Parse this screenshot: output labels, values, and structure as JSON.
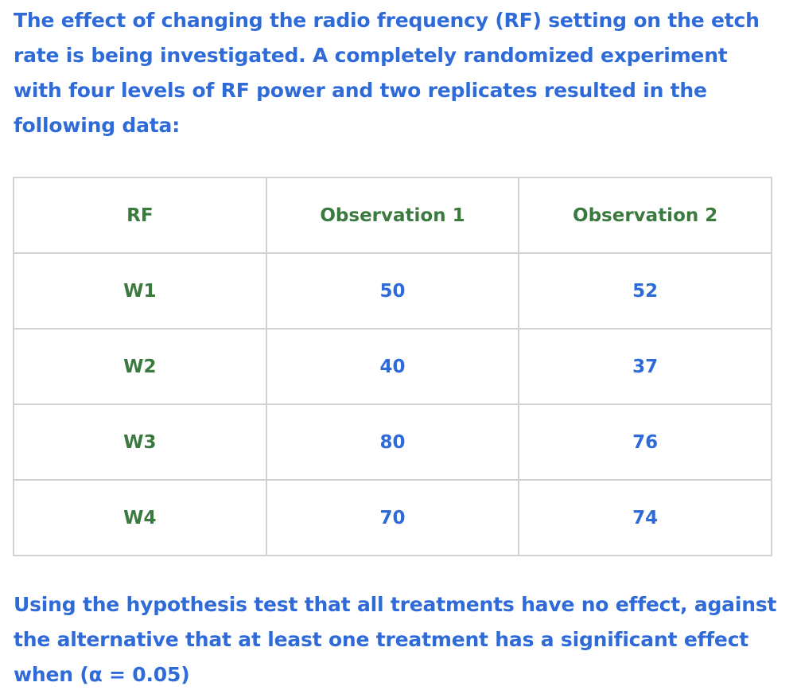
{
  "intro_text": "The effect of changing the radio frequency (RF) setting on the etch rate is being investigated. A completely randomized experiment with four levels of RF power and two replicates resulted in the following data:",
  "table": {
    "headers": [
      "RF",
      "Observation 1",
      "Observation 2"
    ],
    "rows": [
      {
        "rf": "W1",
        "obs1": "50",
        "obs2": "52"
      },
      {
        "rf": "W2",
        "obs1": "40",
        "obs2": "37"
      },
      {
        "rf": "W3",
        "obs1": "80",
        "obs2": "76"
      },
      {
        "rf": "W4",
        "obs1": "70",
        "obs2": "74"
      }
    ]
  },
  "conclusion_text": "Using the hypothesis test that all treatments have no effect, against the alternative that at least one treatment has a significant effect when (α = 0.05)",
  "colors": {
    "text_blue": "#2f6bd8",
    "header_green": "#3b7a3e",
    "border_gray": "#d2d2d2"
  }
}
